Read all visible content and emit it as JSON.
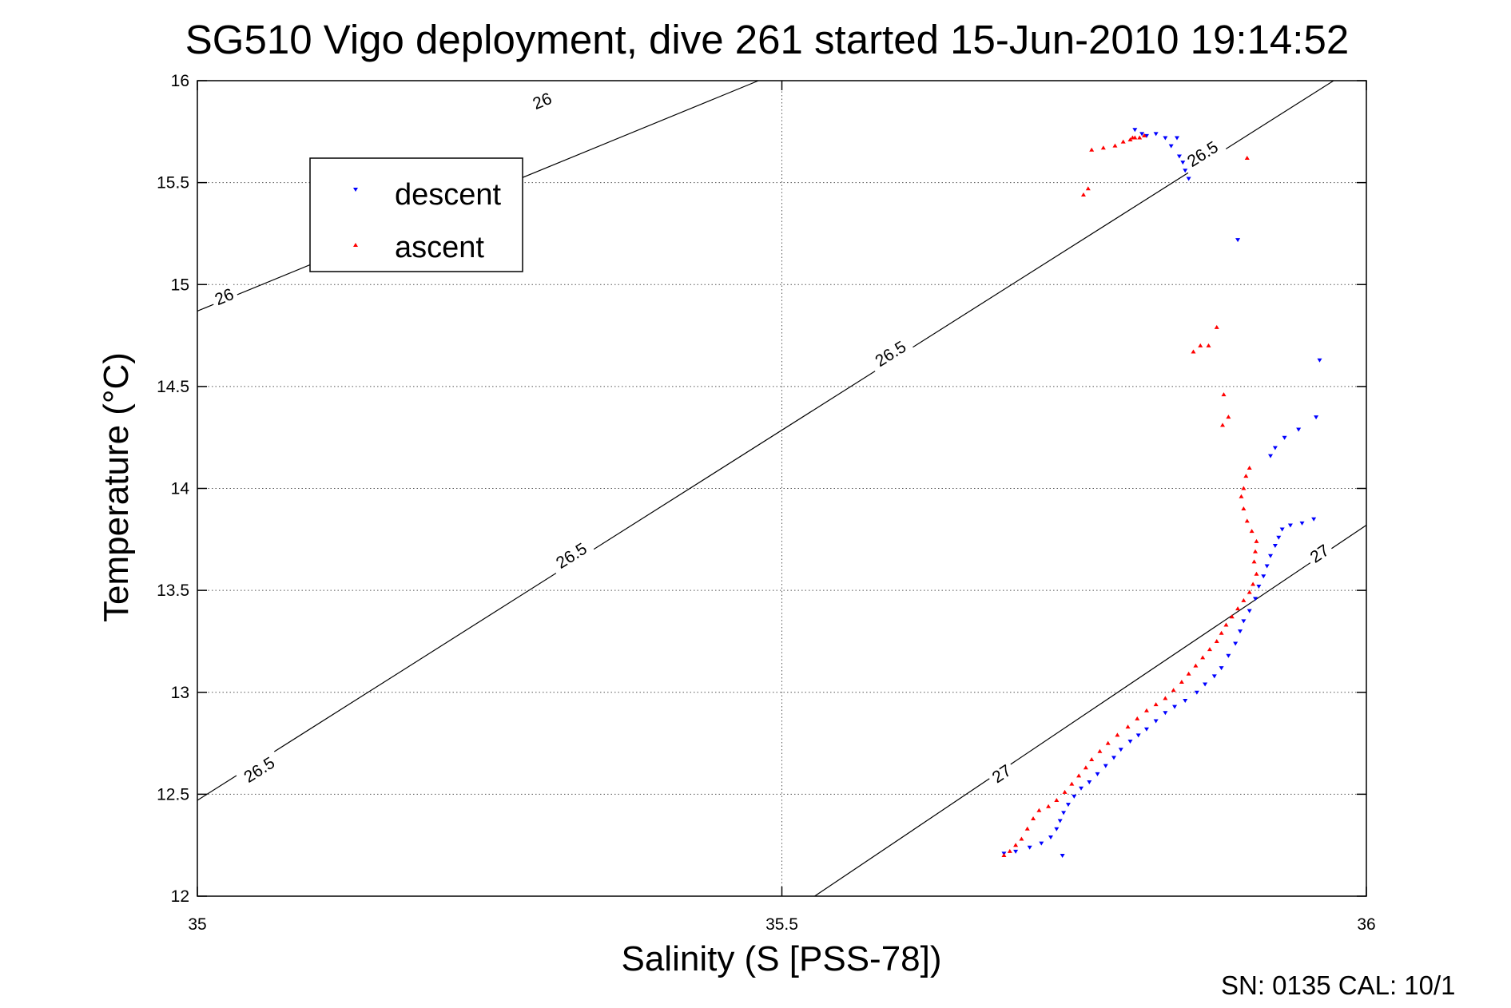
{
  "chart_data": {
    "type": "scatter",
    "title": "SG510 Vigo deployment, dive 261 started 15-Jun-2010 19:14:52",
    "xlabel": "Salinity (S [PSS-78])",
    "ylabel": "Temperature (°C)",
    "xlim": [
      35,
      36
    ],
    "ylim": [
      12,
      16
    ],
    "x_ticks": [
      "35",
      "35.5",
      "36"
    ],
    "y_ticks": [
      "12",
      "12.5",
      "13",
      "13.5",
      "14",
      "14.5",
      "15",
      "15.5",
      "16"
    ],
    "grid": true,
    "legend_position": "top-left",
    "footer": "SN: 0135  CAL: 10/1",
    "contours": [
      {
        "value": 26,
        "label": "26",
        "points": [
          [
            35.0,
            14.87
          ],
          [
            35.48,
            16.0
          ]
        ],
        "label_positions": [
          [
            35.023,
            14.94
          ],
          [
            35.295,
            15.9
          ]
        ]
      },
      {
        "value": 26.5,
        "label": "26.5",
        "points": [
          [
            35.0,
            12.47
          ],
          [
            35.972,
            16.0
          ]
        ],
        "label_positions": [
          [
            35.053,
            12.62
          ],
          [
            35.32,
            13.67
          ],
          [
            35.593,
            14.66
          ],
          [
            35.86,
            15.64
          ]
        ]
      },
      {
        "value": 27,
        "label": "27",
        "points": [
          [
            35.528,
            12.0
          ],
          [
            36.0,
            13.82
          ]
        ],
        "label_positions": [
          [
            35.688,
            12.6
          ],
          [
            35.96,
            13.68
          ]
        ]
      }
    ],
    "series": [
      {
        "name": "descent",
        "color": "#0000ff",
        "marker": "triangle-down",
        "points": [
          [
            35.802,
            15.76
          ],
          [
            35.808,
            15.74
          ],
          [
            35.812,
            15.73
          ],
          [
            35.82,
            15.74
          ],
          [
            35.828,
            15.72
          ],
          [
            35.833,
            15.68
          ],
          [
            35.838,
            15.72
          ],
          [
            35.84,
            15.63
          ],
          [
            35.843,
            15.6
          ],
          [
            35.845,
            15.56
          ],
          [
            35.848,
            15.52
          ],
          [
            35.89,
            15.22
          ],
          [
            35.96,
            14.63
          ],
          [
            35.957,
            14.35
          ],
          [
            35.942,
            14.29
          ],
          [
            35.93,
            14.25
          ],
          [
            35.922,
            14.2
          ],
          [
            35.918,
            14.16
          ],
          [
            35.955,
            13.85
          ],
          [
            35.945,
            13.83
          ],
          [
            35.935,
            13.82
          ],
          [
            35.928,
            13.8
          ],
          [
            35.925,
            13.76
          ],
          [
            35.922,
            13.72
          ],
          [
            35.918,
            13.67
          ],
          [
            35.915,
            13.62
          ],
          [
            35.912,
            13.57
          ],
          [
            35.908,
            13.52
          ],
          [
            35.905,
            13.46
          ],
          [
            35.9,
            13.4
          ],
          [
            35.895,
            13.35
          ],
          [
            35.892,
            13.3
          ],
          [
            35.888,
            13.24
          ],
          [
            35.882,
            13.18
          ],
          [
            35.876,
            13.12
          ],
          [
            35.87,
            13.08
          ],
          [
            35.862,
            13.04
          ],
          [
            35.855,
            13.0
          ],
          [
            35.845,
            12.96
          ],
          [
            35.836,
            12.93
          ],
          [
            35.828,
            12.9
          ],
          [
            35.82,
            12.86
          ],
          [
            35.812,
            12.82
          ],
          [
            35.805,
            12.79
          ],
          [
            35.798,
            12.76
          ],
          [
            35.79,
            12.72
          ],
          [
            35.784,
            12.68
          ],
          [
            35.777,
            12.64
          ],
          [
            35.77,
            12.6
          ],
          [
            35.763,
            12.56
          ],
          [
            35.756,
            12.53
          ],
          [
            35.75,
            12.49
          ],
          [
            35.745,
            12.45
          ],
          [
            35.741,
            12.41
          ],
          [
            35.738,
            12.37
          ],
          [
            35.735,
            12.33
          ],
          [
            35.73,
            12.29
          ],
          [
            35.722,
            12.26
          ],
          [
            35.712,
            12.24
          ],
          [
            35.7,
            12.22
          ],
          [
            35.69,
            12.21
          ],
          [
            35.74,
            12.2
          ]
        ]
      },
      {
        "name": "ascent",
        "color": "#ff0000",
        "marker": "triangle-up",
        "points": [
          [
            35.758,
            15.44
          ],
          [
            35.762,
            15.47
          ],
          [
            35.765,
            15.66
          ],
          [
            35.775,
            15.67
          ],
          [
            35.785,
            15.68
          ],
          [
            35.792,
            15.7
          ],
          [
            35.798,
            15.71
          ],
          [
            35.802,
            15.72
          ],
          [
            35.806,
            15.72
          ],
          [
            35.81,
            15.73
          ],
          [
            35.8,
            15.72
          ],
          [
            35.898,
            15.62
          ],
          [
            35.872,
            14.79
          ],
          [
            35.865,
            14.7
          ],
          [
            35.858,
            14.7
          ],
          [
            35.852,
            14.67
          ],
          [
            35.878,
            14.46
          ],
          [
            35.882,
            14.35
          ],
          [
            35.877,
            14.31
          ],
          [
            35.9,
            14.1
          ],
          [
            35.897,
            14.06
          ],
          [
            35.895,
            14.0
          ],
          [
            35.893,
            13.96
          ],
          [
            35.895,
            13.9
          ],
          [
            35.898,
            13.84
          ],
          [
            35.902,
            13.79
          ],
          [
            35.906,
            13.74
          ],
          [
            35.905,
            13.69
          ],
          [
            35.904,
            13.64
          ],
          [
            35.906,
            13.58
          ],
          [
            35.903,
            13.53
          ],
          [
            35.9,
            13.49
          ],
          [
            35.895,
            13.45
          ],
          [
            35.89,
            13.41
          ],
          [
            35.885,
            13.37
          ],
          [
            35.88,
            13.33
          ],
          [
            35.876,
            13.29
          ],
          [
            35.872,
            13.25
          ],
          [
            35.866,
            13.21
          ],
          [
            35.86,
            13.17
          ],
          [
            35.854,
            13.13
          ],
          [
            35.848,
            13.09
          ],
          [
            35.842,
            13.05
          ],
          [
            35.835,
            13.01
          ],
          [
            35.828,
            12.97
          ],
          [
            35.82,
            12.94
          ],
          [
            35.812,
            12.91
          ],
          [
            35.804,
            12.87
          ],
          [
            35.796,
            12.83
          ],
          [
            35.787,
            12.79
          ],
          [
            35.779,
            12.75
          ],
          [
            35.772,
            12.71
          ],
          [
            35.765,
            12.67
          ],
          [
            35.76,
            12.63
          ],
          [
            35.754,
            12.59
          ],
          [
            35.748,
            12.55
          ],
          [
            35.742,
            12.51
          ],
          [
            35.735,
            12.47
          ],
          [
            35.728,
            12.44
          ],
          [
            35.72,
            12.42
          ],
          [
            35.715,
            12.38
          ],
          [
            35.71,
            12.33
          ],
          [
            35.705,
            12.28
          ],
          [
            35.7,
            12.25
          ],
          [
            35.695,
            12.22
          ],
          [
            35.69,
            12.2
          ]
        ]
      }
    ]
  }
}
